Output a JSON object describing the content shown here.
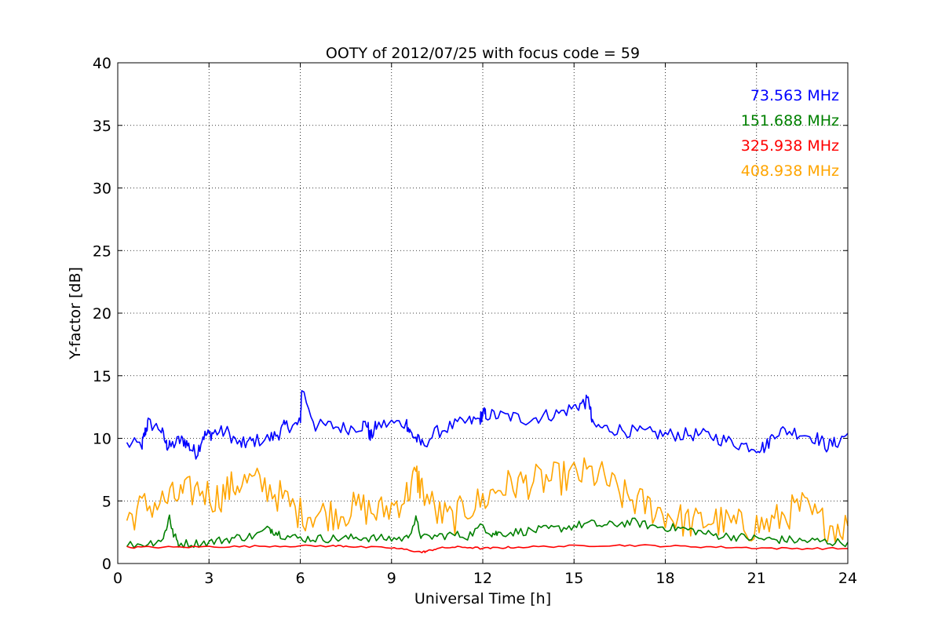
{
  "chart_data": {
    "type": "line",
    "title": "OOTY of 2012/07/25 with focus code = 59",
    "xlabel": "Universal Time [h]",
    "ylabel": "Y-factor [dB]",
    "xlim": [
      0,
      24
    ],
    "ylim": [
      0,
      40
    ],
    "xticks": [
      0,
      3,
      6,
      9,
      12,
      15,
      18,
      21,
      24
    ],
    "yticks": [
      0,
      5,
      10,
      15,
      20,
      25,
      30,
      35,
      40
    ],
    "grid": true,
    "legend_position": "top-right",
    "series": [
      {
        "name": "73.563 MHz",
        "color": "#0000ff",
        "x": [
          0.3,
          0.8,
          0.9,
          1.0,
          1.4,
          1.6,
          1.7,
          2.0,
          2.2,
          2.4,
          2.6,
          2.8,
          3.0,
          3.2,
          3.6,
          4.0,
          4.2,
          4.5,
          5.0,
          5.3,
          5.5,
          5.8,
          6.0,
          6.05,
          6.5,
          7.0,
          7.5,
          8.0,
          8.2,
          8.3,
          8.5,
          9.0,
          9.5,
          9.6,
          9.8,
          10.0,
          10.5,
          11.0,
          11.5,
          11.9,
          12.0,
          12.1,
          12.5,
          13.0,
          13.5,
          14.0,
          14.5,
          15.0,
          15.3,
          15.5,
          15.6,
          16.0,
          16.5,
          17.0,
          17.5,
          18.0,
          18.5,
          19.0,
          19.5,
          20.0,
          20.5,
          21.0,
          21.3,
          21.6,
          22.0,
          22.5,
          23.0,
          23.3,
          23.6,
          24.0
        ],
        "y": [
          9.5,
          9.5,
          10.5,
          11.2,
          10.8,
          9.5,
          9.3,
          9.8,
          9.8,
          9.2,
          8.8,
          10.2,
          10.3,
          10.5,
          10.5,
          9.5,
          9.6,
          9.8,
          10.0,
          10.4,
          11.0,
          11.0,
          11.2,
          14.0,
          11.0,
          11.0,
          10.8,
          11.0,
          11.2,
          10.0,
          11.0,
          11.2,
          11.2,
          10.5,
          10.0,
          9.5,
          10.5,
          11.0,
          11.3,
          11.5,
          12.0,
          11.9,
          11.8,
          11.7,
          11.5,
          11.8,
          12.0,
          12.5,
          12.8,
          13.0,
          11.0,
          10.8,
          10.7,
          10.5,
          10.4,
          10.3,
          10.3,
          10.3,
          10.2,
          9.8,
          9.5,
          9.3,
          9.3,
          10.5,
          10.6,
          10.4,
          10.0,
          9.4,
          9.6,
          10.4
        ]
      },
      {
        "name": "151.688 MHz",
        "color": "#008000",
        "x": [
          0.3,
          1.0,
          1.5,
          1.7,
          1.8,
          2.0,
          2.5,
          3.0,
          3.5,
          4.0,
          4.5,
          5.0,
          5.2,
          5.5,
          6.0,
          6.5,
          7.0,
          7.5,
          8.0,
          8.5,
          9.0,
          9.5,
          9.8,
          10.0,
          10.5,
          11.0,
          11.5,
          12.0,
          12.3,
          12.5,
          13.0,
          13.5,
          14.0,
          14.5,
          15.0,
          15.5,
          16.0,
          16.5,
          17.0,
          17.5,
          18.0,
          18.5,
          19.0,
          19.5,
          20.0,
          20.5,
          21.0,
          21.5,
          22.0,
          22.5,
          23.0,
          23.5,
          24.0
        ],
        "y": [
          1.5,
          1.6,
          2.0,
          3.8,
          2.5,
          1.6,
          1.6,
          1.7,
          1.9,
          2.1,
          2.2,
          2.8,
          2.5,
          2.2,
          2.0,
          2.0,
          2.0,
          2.0,
          2.1,
          2.0,
          2.0,
          2.0,
          3.5,
          2.0,
          2.2,
          2.3,
          2.2,
          3.0,
          2.4,
          2.4,
          2.5,
          2.6,
          2.7,
          2.8,
          3.0,
          3.2,
          3.0,
          3.2,
          3.3,
          3.0,
          2.9,
          2.8,
          2.6,
          2.3,
          2.2,
          2.1,
          2.0,
          1.9,
          1.9,
          1.8,
          1.8,
          1.7,
          1.7
        ]
      },
      {
        "name": "325.938 MHz",
        "color": "#ff0000",
        "x": [
          0.3,
          1.0,
          2.0,
          3.0,
          4.0,
          5.0,
          6.0,
          7.0,
          7.5,
          8.0,
          9.0,
          9.5,
          10.0,
          10.2,
          10.5,
          11.0,
          11.5,
          12.0,
          12.5,
          13.0,
          14.0,
          15.0,
          16.0,
          17.0,
          18.0,
          19.0,
          20.0,
          21.0,
          22.0,
          23.0,
          24.0
        ],
        "y": [
          1.3,
          1.3,
          1.3,
          1.35,
          1.35,
          1.4,
          1.4,
          1.4,
          1.4,
          1.3,
          1.25,
          1.1,
          0.9,
          1.0,
          1.2,
          1.3,
          1.3,
          1.2,
          1.25,
          1.3,
          1.35,
          1.4,
          1.45,
          1.45,
          1.4,
          1.35,
          1.3,
          1.25,
          1.2,
          1.2,
          1.2
        ]
      },
      {
        "name": "408.938 MHz",
        "color": "#ffa500",
        "x": [
          0.3,
          0.8,
          1.3,
          1.8,
          2.2,
          2.7,
          3.2,
          3.6,
          4.0,
          4.5,
          5.0,
          5.5,
          6.0,
          6.5,
          7.0,
          7.5,
          8.0,
          8.5,
          9.0,
          9.5,
          9.8,
          10.0,
          10.5,
          11.0,
          11.5,
          12.0,
          12.5,
          13.0,
          13.5,
          14.0,
          14.5,
          15.0,
          15.5,
          16.0,
          16.5,
          17.0,
          17.5,
          18.0,
          18.5,
          19.0,
          19.5,
          20.0,
          20.5,
          21.0,
          21.5,
          22.0,
          22.5,
          23.0,
          23.5,
          24.0
        ],
        "y": [
          3.5,
          4.5,
          4.8,
          5.2,
          5.5,
          6.0,
          5.2,
          5.8,
          6.5,
          6.5,
          6.0,
          5.0,
          4.0,
          4.0,
          4.0,
          4.2,
          4.5,
          4.0,
          4.5,
          5.5,
          7.0,
          6.0,
          4.0,
          3.5,
          4.5,
          5.0,
          6.0,
          6.3,
          6.5,
          6.6,
          6.8,
          7.0,
          7.2,
          6.8,
          5.5,
          5.0,
          4.5,
          4.0,
          3.5,
          3.2,
          3.5,
          3.2,
          3.0,
          3.0,
          3.2,
          4.0,
          4.5,
          3.5,
          3.0,
          3.0
        ]
      }
    ]
  }
}
